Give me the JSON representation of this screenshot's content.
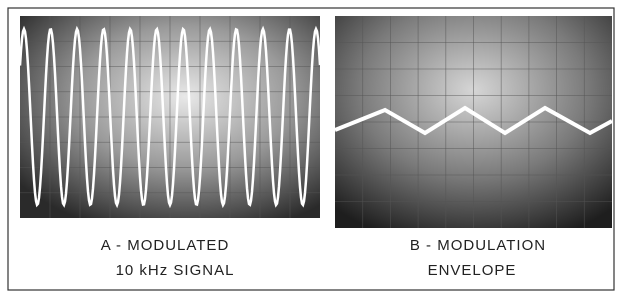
{
  "panels": [
    {
      "caption_lines": [
        "A - MODULATED",
        "10 kHz SIGNAL"
      ]
    },
    {
      "caption_lines": [
        "B - MODULATION",
        "ENVELOPE"
      ]
    }
  ]
}
